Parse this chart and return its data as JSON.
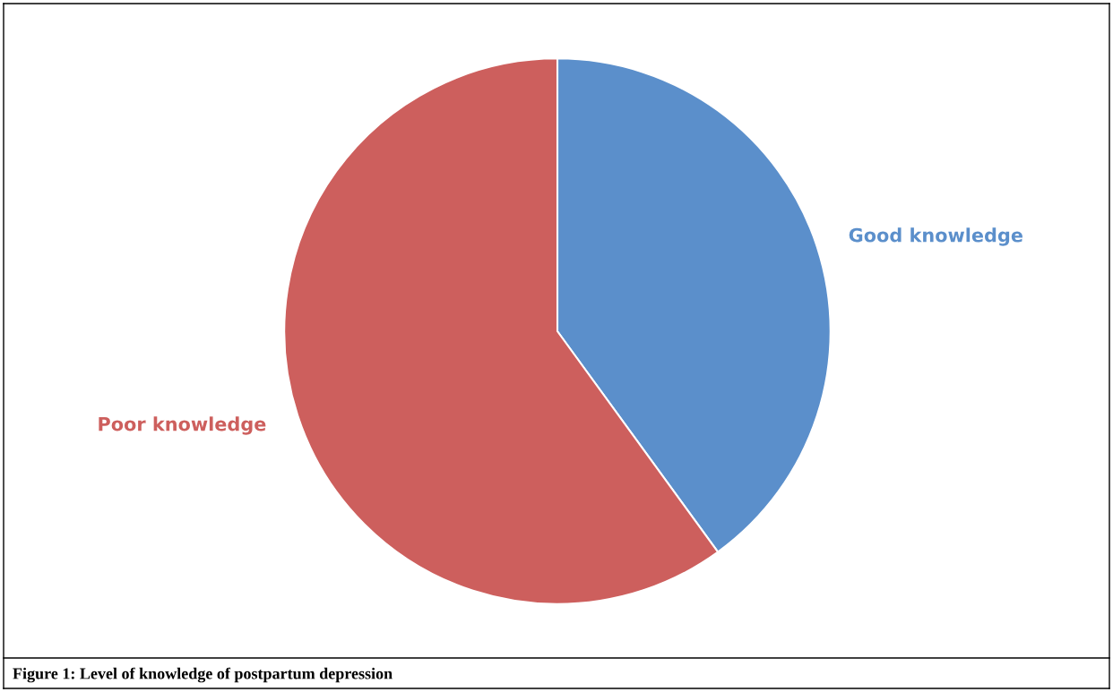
{
  "chart_data": {
    "type": "pie",
    "categories": [
      "Good knowledge",
      "Poor knowledge"
    ],
    "values": [
      40,
      60
    ],
    "colors": [
      "#5b8fcb",
      "#cd5f5d"
    ],
    "legend": false,
    "annotations": [
      "Figure 1: Level of knowledge of postpartum depression"
    ]
  }
}
